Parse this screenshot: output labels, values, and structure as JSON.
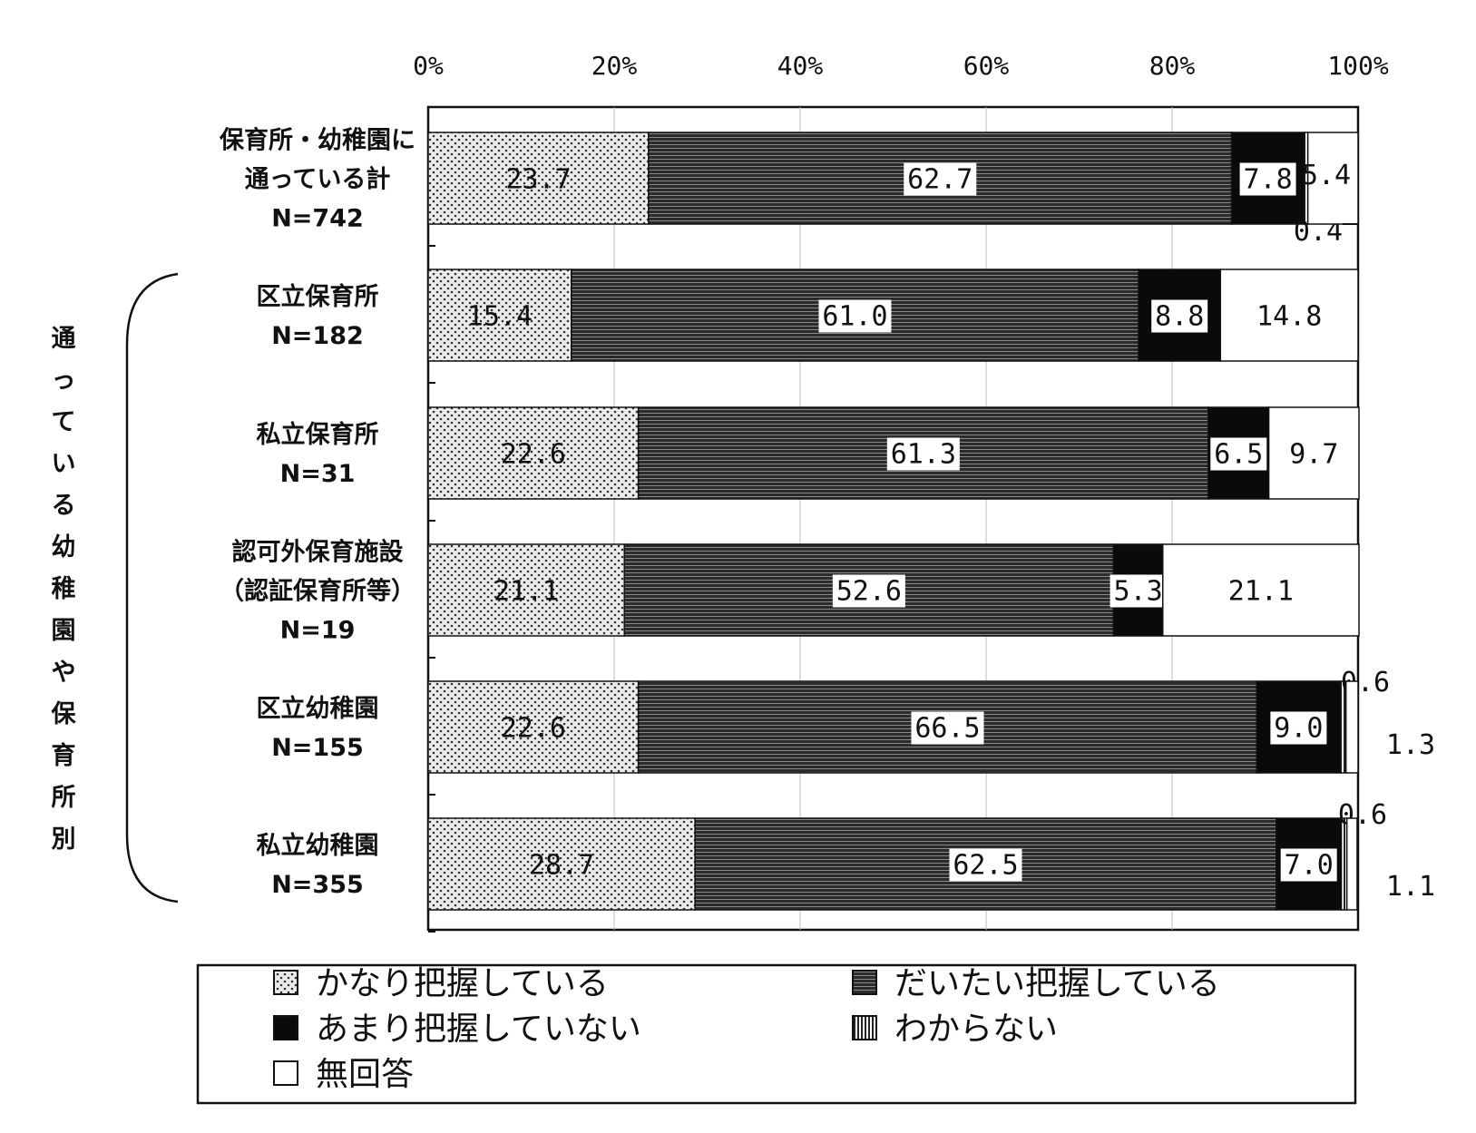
{
  "chart_data": {
    "type": "bar",
    "orientation": "horizontal",
    "stacked": "percent",
    "x_ticks": [
      "0%",
      "20%",
      "40%",
      "60%",
      "80%",
      "100%"
    ],
    "xlim": [
      0,
      100
    ],
    "categories": [
      [
        "保育所・幼稚園に",
        "通っている計",
        "N=742"
      ],
      [
        "区立保育所",
        "N=182"
      ],
      [
        "私立保育所",
        "N=31"
      ],
      [
        "認可外保育施設",
        "（認証保育所等）",
        "N=19"
      ],
      [
        "区立幼稚園",
        "N=155"
      ],
      [
        "私立幼稚園",
        "N=355"
      ]
    ],
    "group_label": [
      "通",
      "っ",
      "て",
      "い",
      "る",
      "幼",
      "稚",
      "園",
      "や",
      "保",
      "育",
      "所",
      "別"
    ],
    "series": [
      {
        "name": "かなり把握している",
        "pattern": "dots",
        "values": [
          23.7,
          15.4,
          22.6,
          21.1,
          22.6,
          28.7
        ],
        "labels": [
          "23.7",
          "15.4",
          "22.6",
          "21.1",
          "22.6",
          "28.7"
        ]
      },
      {
        "name": "だいたい把握している",
        "pattern": "hlines",
        "values": [
          62.7,
          61.0,
          61.3,
          52.6,
          66.5,
          62.5
        ],
        "labels": [
          "62.7",
          "61.0",
          "61.3",
          "52.6",
          "66.5",
          "62.5"
        ]
      },
      {
        "name": "あまり把握していない",
        "pattern": "black",
        "values": [
          7.8,
          8.8,
          6.5,
          5.3,
          9.0,
          7.0
        ],
        "labels": [
          "7.8",
          "8.8",
          "6.5",
          "5.3",
          "9.0",
          "7.0"
        ]
      },
      {
        "name": "わからない",
        "pattern": "vlines",
        "values": [
          0.4,
          0,
          0,
          0,
          0.6,
          0.6
        ],
        "labels": [
          "0.4",
          "",
          "",
          "",
          "0.6",
          "0.6"
        ]
      },
      {
        "name": "無回答",
        "pattern": "white",
        "values": [
          5.4,
          14.8,
          9.7,
          21.1,
          1.3,
          1.1
        ],
        "labels": [
          "5.4",
          "14.8",
          "9.7",
          "21.1",
          "1.3",
          "1.1"
        ]
      }
    ],
    "legend": [
      "かなり把握している",
      "だいたい把握している",
      "あまり把握していない",
      "わからない",
      "無回答"
    ],
    "legend_position": "bottom",
    "grid": "vertical"
  }
}
